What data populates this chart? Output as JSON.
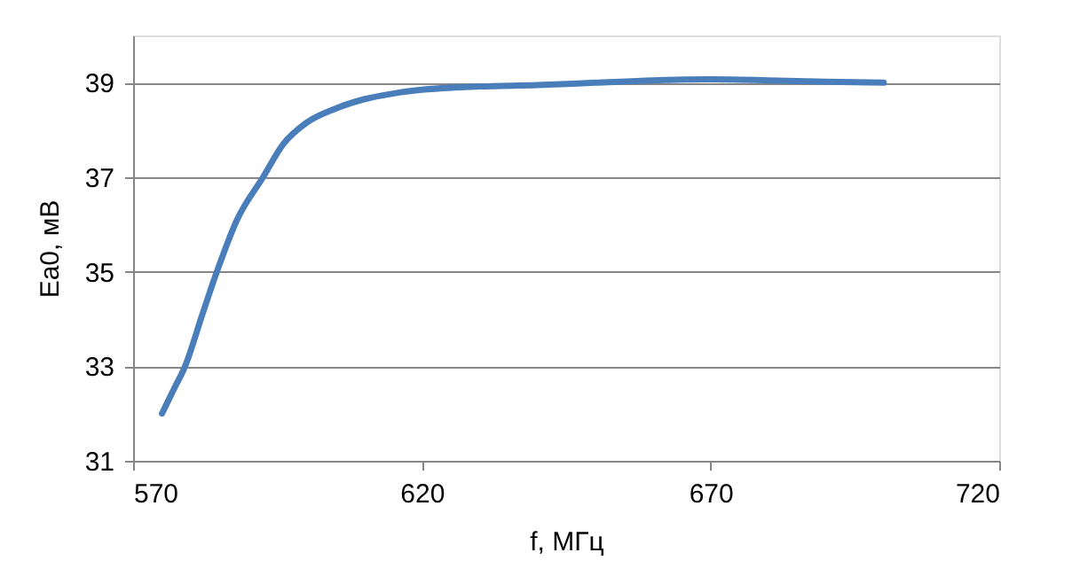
{
  "chart_data": {
    "type": "line",
    "xlabel": "f, МГц",
    "ylabel": "Ea0, мВ",
    "x": [
      575,
      577,
      579,
      582,
      584.5,
      588,
      592.5,
      596,
      600,
      605,
      610,
      615,
      620,
      630,
      640,
      650,
      660,
      670,
      680,
      690,
      700
    ],
    "series": [
      {
        "color": "#4a7ebb",
        "values": [
          32,
          32.5,
          33,
          34.1,
          35,
          36.1,
          37,
          37.7,
          38.15,
          38.45,
          38.65,
          38.77,
          38.85,
          38.92,
          38.95,
          39.0,
          39.05,
          39.07,
          39.05,
          39.02,
          39.0
        ]
      }
    ],
    "xlim": [
      570,
      720
    ],
    "xticks": [
      570,
      620,
      670,
      720
    ],
    "ylim": [
      31,
      40
    ],
    "yticks": [
      31,
      33,
      35,
      37,
      39
    ],
    "grid": "y",
    "marker": "none",
    "line_style": "solid"
  }
}
